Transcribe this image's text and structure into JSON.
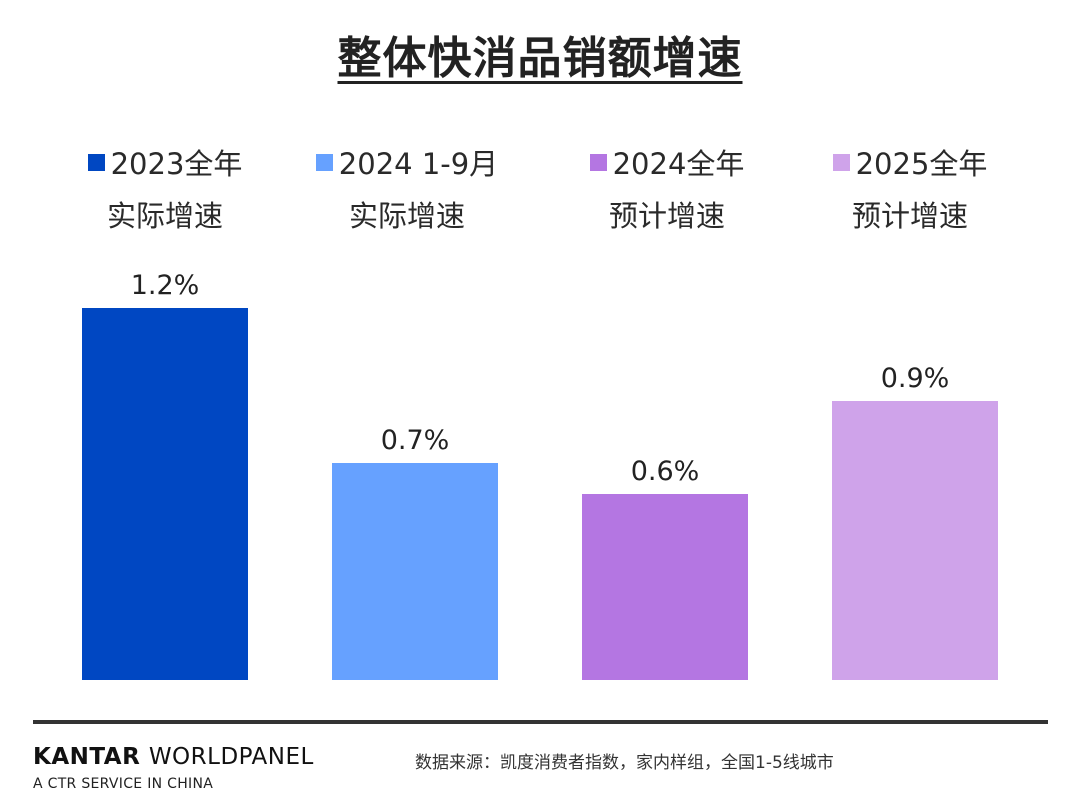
{
  "title": "整体快消品销额增速",
  "legend": [
    {
      "line1": "2023全年",
      "line2": "实际增速",
      "color": "#0047c2"
    },
    {
      "line1": "2024 1-9月",
      "line2": "实际增速",
      "color": "#66a1ff"
    },
    {
      "line1": "2024全年",
      "line2": "预计增速",
      "color": "#b476e2"
    },
    {
      "line1": "2025全年",
      "line2": "预计增速",
      "color": "#cfa3ea"
    }
  ],
  "chart_data": {
    "type": "bar",
    "title": "整体快消品销额增速",
    "categories": [
      "2023全年实际增速",
      "2024 1-9月实际增速",
      "2024全年预计增速",
      "2025全年预计增速"
    ],
    "values": [
      1.2,
      0.7,
      0.6,
      0.9
    ],
    "labels": [
      "1.2%",
      "0.7%",
      "0.6%",
      "0.9%"
    ],
    "colors": [
      "#0047c2",
      "#66a1ff",
      "#b476e2",
      "#cfa3ea"
    ],
    "ylim": [
      0,
      1.2
    ],
    "xlabel": "",
    "ylabel": "",
    "grid": false
  },
  "footer": {
    "brand_bold": "KANTAR",
    "brand_light": "WORLDPANEL",
    "tagline": "A CTR SERVICE IN CHINA",
    "source": "数据来源：凯度消费者指数，家内样组，全国1-5线城市"
  }
}
